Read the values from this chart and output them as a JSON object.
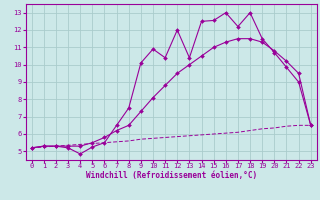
{
  "xlabel": "Windchill (Refroidissement éolien,°C)",
  "bg_color": "#cce8e8",
  "grid_color": "#aacccc",
  "line_color": "#990099",
  "xlim": [
    -0.5,
    23.5
  ],
  "ylim": [
    4.5,
    13.5
  ],
  "xticks": [
    0,
    1,
    2,
    3,
    4,
    5,
    6,
    7,
    8,
    9,
    10,
    11,
    12,
    13,
    14,
    15,
    16,
    17,
    18,
    19,
    20,
    21,
    22,
    23
  ],
  "yticks": [
    5,
    6,
    7,
    8,
    9,
    10,
    11,
    12,
    13
  ],
  "line1_x": [
    0,
    1,
    2,
    3,
    4,
    5,
    6,
    7,
    8,
    9,
    10,
    11,
    12,
    13,
    14,
    15,
    16,
    17,
    18,
    19,
    20,
    21,
    22,
    23
  ],
  "line1_y": [
    5.2,
    5.3,
    5.3,
    5.2,
    4.85,
    5.25,
    5.5,
    6.5,
    7.5,
    10.1,
    10.9,
    10.4,
    12.0,
    10.4,
    12.5,
    12.55,
    13.0,
    12.2,
    13.0,
    11.5,
    10.7,
    9.85,
    9.0,
    6.5
  ],
  "line2_x": [
    0,
    1,
    2,
    3,
    4,
    5,
    6,
    7,
    8,
    9,
    10,
    11,
    12,
    13,
    14,
    15,
    16,
    17,
    18,
    19,
    20,
    21,
    22,
    23
  ],
  "line2_y": [
    5.2,
    5.3,
    5.3,
    5.3,
    5.3,
    5.5,
    5.8,
    6.2,
    6.5,
    7.3,
    8.1,
    8.8,
    9.5,
    10.0,
    10.5,
    11.0,
    11.3,
    11.5,
    11.5,
    11.3,
    10.8,
    10.2,
    9.5,
    6.5
  ],
  "line3_x": [
    0,
    1,
    2,
    3,
    4,
    5,
    6,
    7,
    8,
    9,
    10,
    11,
    12,
    13,
    14,
    15,
    16,
    17,
    18,
    19,
    20,
    21,
    22,
    23
  ],
  "line3_y": [
    5.2,
    5.25,
    5.3,
    5.35,
    5.4,
    5.45,
    5.5,
    5.55,
    5.6,
    5.7,
    5.75,
    5.8,
    5.85,
    5.9,
    5.95,
    6.0,
    6.05,
    6.1,
    6.2,
    6.3,
    6.35,
    6.45,
    6.5,
    6.5
  ],
  "tick_fontsize": 5,
  "xlabel_fontsize": 5.5,
  "marker_size": 2.0,
  "linewidth": 0.8
}
